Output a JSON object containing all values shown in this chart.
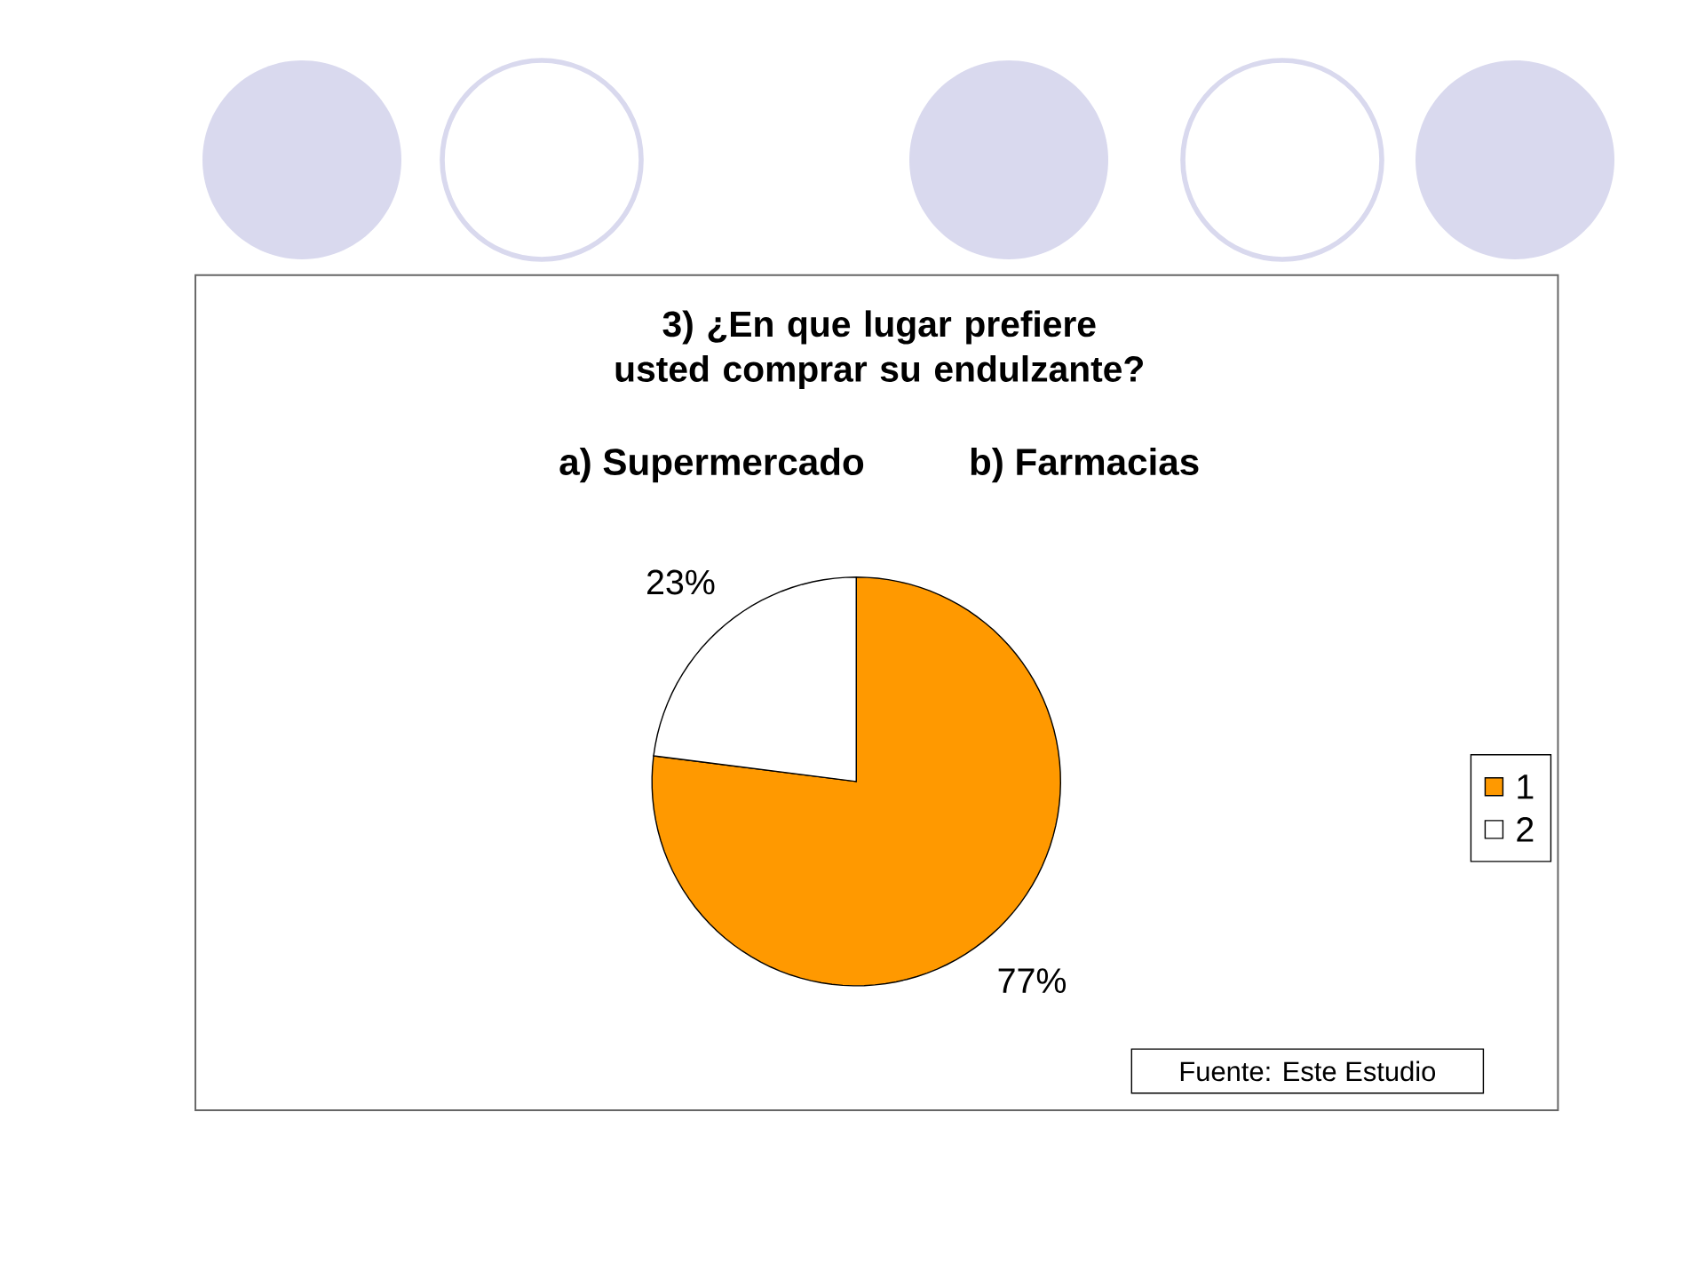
{
  "chart_data": {
    "type": "pie",
    "title": "3) ¿En que lugar prefiere usted comprar su endulzante?",
    "subtitle": "a) Supermercado          b) Farmacias",
    "categories": [
      "1",
      "2"
    ],
    "values": [
      77,
      23
    ],
    "colors": [
      "#ff9900",
      "#ffffff"
    ],
    "value_labels": [
      "77%",
      "23%"
    ],
    "legend": "right",
    "annotations": [
      "Fuente: Este Estudio"
    ]
  }
}
